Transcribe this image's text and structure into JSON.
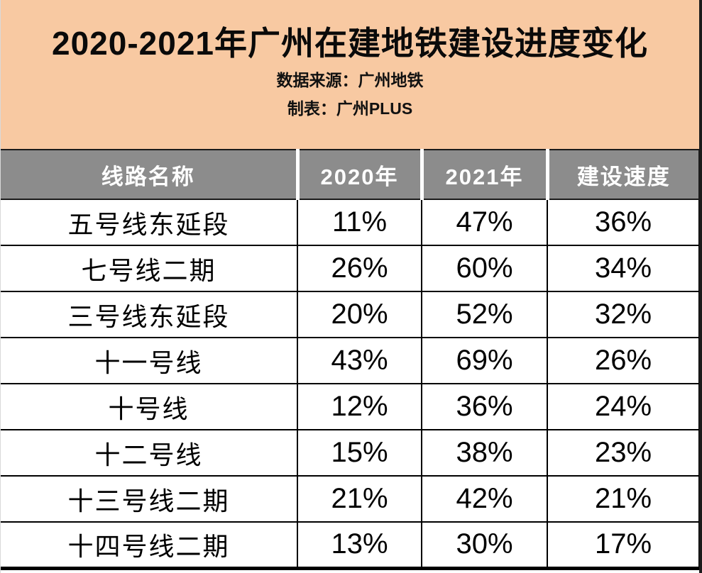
{
  "banner": {
    "title": "2020-2021年广州在建地铁建设进度变化",
    "source": "数据来源：广州地铁",
    "author": "制表：广州PLUS"
  },
  "colors": {
    "banner_bg": "#F8C9A2",
    "header_bg": "#8C8C8C",
    "header_text": "#FFFFFF",
    "body_text": "#000000",
    "grid_line": "#000000"
  },
  "chart_data": {
    "type": "table",
    "title": "2020-2021年广州在建地铁建设进度变化",
    "columns": [
      "线路名称",
      "2020年",
      "2021年",
      "建设速度"
    ],
    "rows": [
      [
        "五号线东延段",
        "11%",
        "47%",
        "36%"
      ],
      [
        "七号线二期",
        "26%",
        "60%",
        "34%"
      ],
      [
        "三号线东延段",
        "20%",
        "52%",
        "32%"
      ],
      [
        "十一号线",
        "43%",
        "69%",
        "26%"
      ],
      [
        "十号线",
        "12%",
        "36%",
        "24%"
      ],
      [
        "十二号线",
        "15%",
        "38%",
        "23%"
      ],
      [
        "十三号线二期",
        "21%",
        "42%",
        "21%"
      ],
      [
        "十四号线二期",
        "13%",
        "30%",
        "17%"
      ]
    ]
  }
}
